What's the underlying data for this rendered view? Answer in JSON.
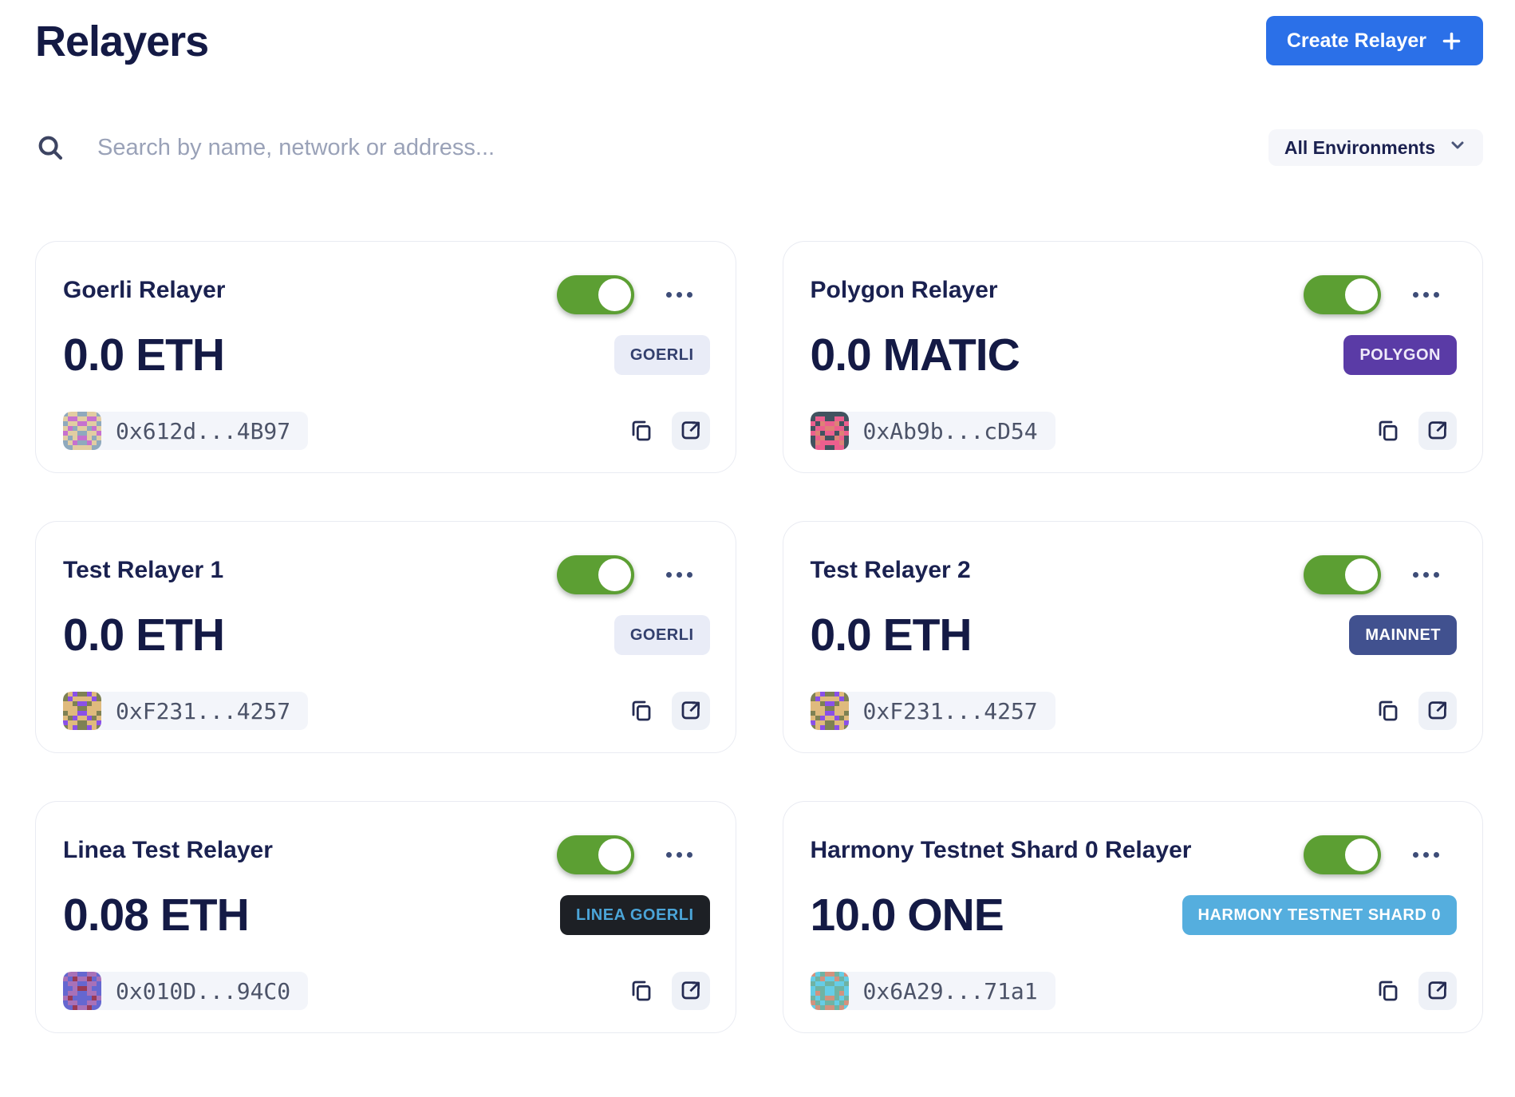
{
  "page": {
    "title": "Relayers"
  },
  "header": {
    "create_button_label": "Create Relayer"
  },
  "search": {
    "placeholder": "Search by name, network or address..."
  },
  "filters": {
    "environment_value": "All Environments"
  },
  "colors": {
    "accent_blue": "#2b70e8",
    "toggle_green": "#5c9f33",
    "navy_text": "#141a45",
    "card_border": "#e9ebf2"
  },
  "cards": [
    {
      "name": "Goerli Relayer",
      "balance": "0.0 ETH",
      "enabled": true,
      "network_badge": {
        "label": "GOERLI",
        "bg": "#e9ecf7",
        "fg": "#323f6d"
      },
      "address": "0x612d...4B97",
      "avatar": {
        "palette": [
          "#8fa9bd",
          "#e2cda2",
          "#c671cf"
        ],
        "pattern": [
          "01100110",
          "12211221",
          "01122110",
          "12011021",
          "21100112",
          "10122101",
          "01200210",
          "00111100"
        ]
      }
    },
    {
      "name": "Polygon Relayer",
      "balance": "0.0 MATIC",
      "enabled": true,
      "network_badge": {
        "label": "POLYGON",
        "bg": "#5a3ba6",
        "fg": "#efeaf9"
      },
      "address": "0xAb9b...cD54",
      "avatar": {
        "palette": [
          "#41535f",
          "#ec5f8e",
          "#dd8276"
        ],
        "pattern": [
          "00000000",
          "01100110",
          "10211201",
          "01122110",
          "12011021",
          "01200210",
          "02111120",
          "01100110"
        ]
      }
    },
    {
      "name": "Test Relayer 1",
      "balance": "0.0 ETH",
      "enabled": true,
      "network_badge": {
        "label": "GOERLI",
        "bg": "#e9ecf7",
        "fg": "#323f6d"
      },
      "address": "0xF231...4257",
      "avatar": {
        "palette": [
          "#7e8153",
          "#dfba7d",
          "#8a50e8"
        ],
        "pattern": [
          "01200210",
          "02111120",
          "11022011",
          "11100111",
          "01122110",
          "10211201",
          "21100112",
          "01200210"
        ]
      }
    },
    {
      "name": "Test Relayer 2",
      "balance": "0.0 ETH",
      "enabled": true,
      "network_badge": {
        "label": "MAINNET",
        "bg": "#41518f",
        "fg": "#ffffff"
      },
      "address": "0xF231...4257",
      "avatar": {
        "palette": [
          "#7e8153",
          "#dfba7d",
          "#8a50e8"
        ],
        "pattern": [
          "01200210",
          "02111120",
          "11022011",
          "11100111",
          "01122110",
          "10211201",
          "21100112",
          "01200210"
        ]
      }
    },
    {
      "name": "Linea Test Relayer",
      "balance": "0.08 ETH",
      "enabled": true,
      "network_badge": {
        "label": "LINEA GOERLI",
        "bg": "#1d2025",
        "fg": "#4ba5d8"
      },
      "address": "0x010D...94C0",
      "avatar": {
        "palette": [
          "#6567d0",
          "#a871b8",
          "#993a55"
        ],
        "pattern": [
          "01100110",
          "10211201",
          "01100110",
          "00122100",
          "01100110",
          "12000021",
          "01100110",
          "00211200"
        ]
      }
    },
    {
      "name": "Harmony Testnet Shard 0 Relayer",
      "balance": "10.0 ONE",
      "enabled": true,
      "network_badge": {
        "label": "HARMONY TESTNET SHARD 0",
        "bg": "#55aede",
        "fg": "#ffffff"
      },
      "address": "0x6A29...71a1",
      "avatar": {
        "palette": [
          "#66cde6",
          "#6fb3a4",
          "#d2927e"
        ],
        "pattern": [
          "20122102",
          "01200210",
          "10011001",
          "01100110",
          "02100120",
          "10122101",
          "21011012",
          "02122120"
        ]
      }
    }
  ]
}
